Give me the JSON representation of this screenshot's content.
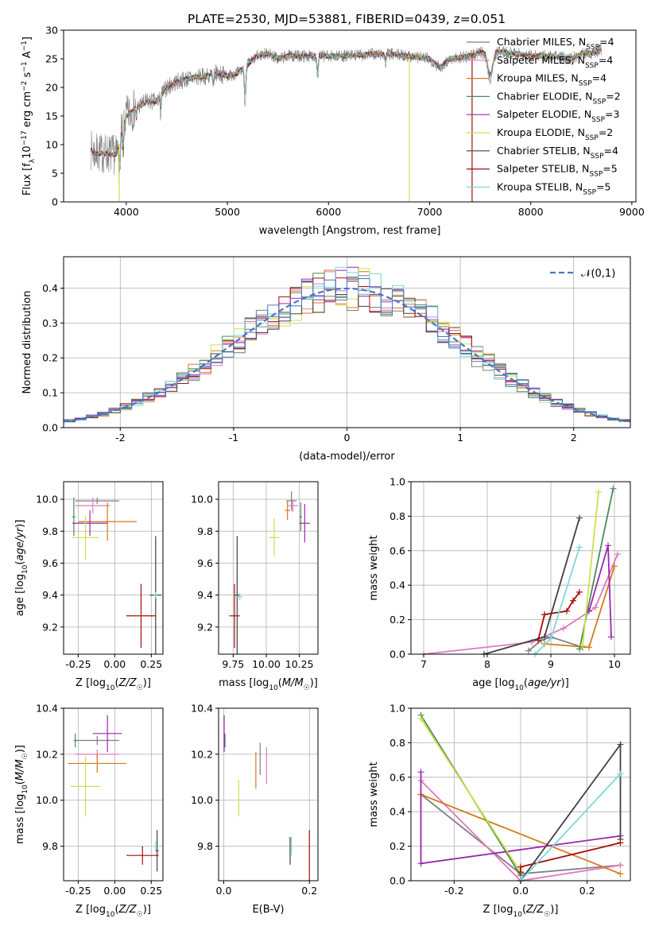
{
  "figure_title": "PLATE=2530, MJD=53881, FIBERID=0439, z=0.051",
  "colors": {
    "Chabrier MILES": "#7f7f7f",
    "Salpeter MILES": "#e377c2",
    "Kroupa MILES": "#d47a1a",
    "Chabrier ELODIE": "#4a8a5a",
    "Salpeter ELODIE": "#9b27b0",
    "Kroupa ELODIE": "#cde04a",
    "Chabrier STELIB": "#404040",
    "Salpeter STELIB": "#a50f0f",
    "Kroupa STELIB": "#7dd9dc",
    "model_blue": "#4a74c8",
    "normal_curve": "#4a74c8"
  },
  "chart_data": [
    {
      "id": "spectrum",
      "type": "line",
      "xlabel": "wavelength [Angstrom, rest frame]",
      "ylabel": "Flux [f_λ 10^-17 erg cm^-2 s^-1 A^-1]",
      "xlim": [
        3380,
        9040
      ],
      "ylim": [
        0,
        30
      ],
      "xticks": [
        4000,
        5000,
        6000,
        7000,
        8000,
        9000
      ],
      "yticks": [
        0,
        5,
        10,
        15,
        20,
        25,
        30
      ],
      "legend_position": "top-right",
      "continuum": {
        "x": [
          3650,
          3700,
          3800,
          3900,
          3950,
          4000,
          4100,
          4200,
          4300,
          4400,
          4500,
          4600,
          4800,
          4900,
          5000,
          5100,
          5200,
          5300,
          5400,
          5500,
          5600,
          5800,
          6000,
          6200,
          6400,
          6600,
          6800,
          7000,
          7100,
          7200,
          7400,
          7600,
          7800,
          8000,
          8200,
          8400,
          8500,
          8600,
          8700
        ],
        "y": [
          9.0,
          8.5,
          8.5,
          8.2,
          11.5,
          15.0,
          16.5,
          17.5,
          17.5,
          20.0,
          21.0,
          21.5,
          22.0,
          22.5,
          22.0,
          22.5,
          24.0,
          25.5,
          26.0,
          25.0,
          25.5,
          25.5,
          25.5,
          25.5,
          25.8,
          25.8,
          25.5,
          25.0,
          23.5,
          25.0,
          25.5,
          26.5,
          26.0,
          25.5,
          25.5,
          25.0,
          26.0,
          26.0,
          26.5
        ]
      },
      "series": [
        {
          "name": "Chabrier MILES",
          "subscript": "SSP",
          "n": "4"
        },
        {
          "name": "Salpeter MILES",
          "subscript": "SSP",
          "n": "4"
        },
        {
          "name": "Kroupa MILES",
          "subscript": "SSP",
          "n": "4"
        },
        {
          "name": "Chabrier ELODIE",
          "subscript": "SSP",
          "n": "2"
        },
        {
          "name": "Salpeter ELODIE",
          "subscript": "SSP",
          "n": "3"
        },
        {
          "name": "Kroupa ELODIE",
          "subscript": "SSP",
          "n": "2"
        },
        {
          "name": "Chabrier STELIB",
          "subscript": "SSP",
          "n": "4"
        },
        {
          "name": "Salpeter STELIB",
          "subscript": "SSP",
          "n": "5"
        },
        {
          "name": "Kroupa STELIB",
          "subscript": "SSP",
          "n": "5"
        }
      ],
      "drops": [
        {
          "series": "Kroupa ELODIE",
          "x": 3930
        },
        {
          "series": "Kroupa ELODIE",
          "x": 6800
        },
        {
          "series": "Salpeter STELIB",
          "x": 7420
        }
      ]
    },
    {
      "id": "residuals",
      "type": "histogram",
      "xlabel": "(data-model)/error",
      "ylabel": "Normed distribution",
      "xlim": [
        -2.5,
        2.5
      ],
      "ylim": [
        0,
        0.49
      ],
      "xticks": [
        -2,
        -1,
        0,
        1,
        2
      ],
      "yticks": [
        0,
        0.1,
        0.2,
        0.3,
        0.4
      ],
      "grid": true,
      "legend_position": "top-right",
      "legend_label": "𝒩(0,1)",
      "bin_width": 0.1
    },
    {
      "id": "age_vs_Z",
      "type": "errorbar",
      "xlabel": "Z [log10(Z/Z☉)]",
      "ylabel": "age  [log10(age/yr)]",
      "xlim": [
        -0.35,
        0.33
      ],
      "ylim": [
        9.03,
        10.11
      ],
      "xticks": [
        -0.25,
        0.0,
        0.25
      ],
      "yticks": [
        9.2,
        9.4,
        9.6,
        9.8,
        10.0
      ],
      "grid": true,
      "points": [
        {
          "series": "Chabrier MILES",
          "x": -0.12,
          "xerr": 0.15,
          "y": 9.99,
          "yerr": 0.02
        },
        {
          "series": "Salpeter MILES",
          "x": -0.15,
          "xerr": 0.12,
          "y": 9.96,
          "yerr": 0.05
        },
        {
          "series": "Kroupa MILES",
          "x": -0.05,
          "xerr": 0.2,
          "y": 9.86,
          "yerr": 0.12
        },
        {
          "series": "Chabrier ELODIE",
          "x": -0.28,
          "xerr": 0.01,
          "y": 9.89,
          "yerr": 0.12
        },
        {
          "series": "Salpeter ELODIE",
          "x": -0.17,
          "xerr": 0.12,
          "y": 9.85,
          "yerr": 0.08
        },
        {
          "series": "Kroupa ELODIE",
          "x": -0.2,
          "xerr": 0.09,
          "y": 9.76,
          "yerr": 0.14
        },
        {
          "series": "Chabrier STELIB",
          "x": 0.28,
          "xerr": 0.04,
          "y": 9.4,
          "yerr": 0.37
        },
        {
          "series": "Salpeter STELIB",
          "x": 0.18,
          "xerr": 0.1,
          "y": 9.27,
          "yerr": 0.2
        },
        {
          "series": "Kroupa STELIB",
          "x": 0.28,
          "xerr": 0.01,
          "y": 9.4,
          "yerr": 0.02
        }
      ]
    },
    {
      "id": "age_vs_mass",
      "type": "errorbar",
      "xlabel": "mass [log10(M/M☉)]",
      "ylabel": "",
      "xlim": [
        9.64,
        10.39
      ],
      "ylim": [
        9.03,
        10.11
      ],
      "xticks": [
        9.75,
        10.0,
        10.25
      ],
      "yticks": [
        9.2,
        9.4,
        9.6,
        9.8,
        10.0
      ],
      "grid": true,
      "points": [
        {
          "series": "Chabrier MILES",
          "x": 10.19,
          "xerr": 0.04,
          "y": 9.99,
          "yerr": 0.06
        },
        {
          "series": "Salpeter MILES",
          "x": 10.2,
          "xerr": 0.04,
          "y": 9.96,
          "yerr": 0.04
        },
        {
          "series": "Kroupa MILES",
          "x": 10.16,
          "xerr": 0.02,
          "y": 9.93,
          "yerr": 0.06
        },
        {
          "series": "Chabrier ELODIE",
          "x": 10.26,
          "xerr": 0.01,
          "y": 9.89,
          "yerr": 0.09
        },
        {
          "series": "Salpeter ELODIE",
          "x": 10.29,
          "xerr": 0.04,
          "y": 9.85,
          "yerr": 0.12
        },
        {
          "series": "Kroupa ELODIE",
          "x": 10.06,
          "xerr": 0.04,
          "y": 9.76,
          "yerr": 0.12
        },
        {
          "series": "Chabrier STELIB",
          "x": 9.78,
          "xerr": 0.02,
          "y": 9.4,
          "yerr": 0.37
        },
        {
          "series": "Salpeter STELIB",
          "x": 9.76,
          "xerr": 0.04,
          "y": 9.27,
          "yerr": 0.2
        },
        {
          "series": "Kroupa STELIB",
          "x": 9.8,
          "xerr": 0.02,
          "y": 9.39,
          "yerr": 0.02
        }
      ]
    },
    {
      "id": "massweight_vs_age",
      "type": "line",
      "xlabel": "age  [log10(age/yr)]",
      "ylabel": "mass weight",
      "xlim": [
        6.8,
        10.25
      ],
      "ylim": [
        0,
        1.0
      ],
      "xticks": [
        7,
        8,
        9,
        10
      ],
      "yticks": [
        0.0,
        0.2,
        0.4,
        0.6,
        0.8,
        1.0
      ],
      "grid": true,
      "series": [
        {
          "name": "Chabrier MILES",
          "x": [
            8.65,
            8.85,
            9.0,
            9.5
          ],
          "y": [
            0.02,
            0.08,
            0.1,
            0.04
          ]
        },
        {
          "name": "Salpeter MILES",
          "x": [
            7.0,
            8.7,
            9.2,
            9.7,
            10.05
          ],
          "y": [
            0.0,
            0.07,
            0.15,
            0.27,
            0.58
          ]
        },
        {
          "name": "Kroupa MILES",
          "x": [
            8.9,
            9.6,
            10.0
          ],
          "y": [
            0.06,
            0.04,
            0.51
          ]
        },
        {
          "name": "Chabrier ELODIE",
          "x": [
            9.45,
            9.98
          ],
          "y": [
            0.03,
            0.96
          ]
        },
        {
          "name": "Salpeter ELODIE",
          "x": [
            9.6,
            9.9,
            9.95
          ],
          "y": [
            0.25,
            0.63,
            0.1
          ]
        },
        {
          "name": "Kroupa ELODIE",
          "x": [
            9.5,
            9.75
          ],
          "y": [
            0.05,
            0.94
          ]
        },
        {
          "name": "Chabrier STELIB",
          "x": [
            7.95,
            8.9,
            9.45
          ],
          "y": [
            0.0,
            0.1,
            0.79
          ]
        },
        {
          "name": "Salpeter STELIB",
          "x": [
            8.8,
            8.9,
            9.25,
            9.35,
            9.45
          ],
          "y": [
            0.08,
            0.23,
            0.25,
            0.31,
            0.36
          ]
        },
        {
          "name": "Kroupa STELIB",
          "x": [
            8.75,
            9.0,
            9.45
          ],
          "y": [
            0.0,
            0.09,
            0.62
          ]
        }
      ]
    },
    {
      "id": "mass_vs_Z",
      "type": "errorbar",
      "xlabel": "Z [log10(Z/Z☉)]",
      "ylabel": "mass [log10(M/M☉)]",
      "xlim": [
        -0.35,
        0.33
      ],
      "ylim": [
        9.65,
        10.4
      ],
      "xticks": [
        -0.25,
        0.0,
        0.25
      ],
      "yticks": [
        9.8,
        10.0,
        10.2,
        10.4
      ],
      "grid": true,
      "points": [
        {
          "series": "Chabrier MILES",
          "x": -0.12,
          "xerr": 0.15,
          "y": 10.26,
          "yerr": 0.02
        },
        {
          "series": "Salpeter MILES",
          "x": -0.12,
          "xerr": 0.15,
          "y": 10.2,
          "yerr": 0.02
        },
        {
          "series": "Kroupa MILES",
          "x": -0.12,
          "xerr": 0.2,
          "y": 10.16,
          "yerr": 0.04
        },
        {
          "series": "Chabrier ELODIE",
          "x": -0.27,
          "xerr": 0.01,
          "y": 10.26,
          "yerr": 0.03
        },
        {
          "series": "Salpeter ELODIE",
          "x": -0.05,
          "xerr": 0.1,
          "y": 10.29,
          "yerr": 0.08
        },
        {
          "series": "Kroupa ELODIE",
          "x": -0.2,
          "xerr": 0.1,
          "y": 10.06,
          "yerr": 0.13
        },
        {
          "series": "Chabrier STELIB",
          "x": 0.29,
          "xerr": 0.01,
          "y": 9.78,
          "yerr": 0.09
        },
        {
          "series": "Salpeter STELIB",
          "x": 0.19,
          "xerr": 0.11,
          "y": 9.76,
          "yerr": 0.04
        },
        {
          "series": "Kroupa STELIB",
          "x": 0.28,
          "xerr": 0.01,
          "y": 9.8,
          "yerr": 0.02
        }
      ]
    },
    {
      "id": "mass_vs_EBV",
      "type": "errorbar",
      "xlabel": "E(B-V)",
      "ylabel": "",
      "xlim": [
        -0.012,
        0.22
      ],
      "ylim": [
        9.65,
        10.4
      ],
      "xticks": [
        0.0,
        0.2
      ],
      "yticks": [
        9.8,
        10.0,
        10.2,
        10.4
      ],
      "grid": true,
      "points": [
        {
          "series": "Chabrier MILES",
          "x": 0.085,
          "y": 10.18,
          "yerr": 0.07
        },
        {
          "series": "Salpeter MILES",
          "x": 0.1,
          "y": 10.15,
          "yerr": 0.08
        },
        {
          "series": "Kroupa MILES",
          "x": 0.075,
          "y": 10.13,
          "yerr": 0.08
        },
        {
          "series": "Chabrier ELODIE",
          "x": 0.003,
          "y": 10.26,
          "yerr": 0.03
        },
        {
          "series": "Salpeter ELODIE",
          "x": 0.001,
          "y": 10.29,
          "yerr": 0.08
        },
        {
          "series": "Kroupa ELODIE",
          "x": 0.035,
          "y": 10.01,
          "yerr": 0.08
        },
        {
          "series": "Chabrier STELIB",
          "x": 0.155,
          "y": 9.78,
          "yerr": 0.06
        },
        {
          "series": "Salpeter STELIB",
          "x": 0.2,
          "y": 9.76,
          "yerr": 0.11
        },
        {
          "series": "Kroupa STELIB",
          "x": 0.158,
          "y": 9.8,
          "yerr": 0.04
        }
      ]
    },
    {
      "id": "massweight_vs_Z",
      "type": "line",
      "xlabel": "Z [log10(Z/Z☉)]",
      "ylabel": "mass weight",
      "xlim": [
        -0.33,
        0.33
      ],
      "ylim": [
        0,
        1.0
      ],
      "xticks": [
        -0.2,
        0.0,
        0.2
      ],
      "yticks": [
        0.0,
        0.2,
        0.4,
        0.6,
        0.8,
        1.0
      ],
      "grid": true,
      "series": [
        {
          "name": "Chabrier MILES",
          "x": [
            -0.3,
            0.0,
            0.3
          ],
          "y": [
            0.5,
            0.04,
            0.09
          ]
        },
        {
          "name": "Salpeter MILES",
          "x": [
            -0.3,
            0.0,
            0.3
          ],
          "y": [
            0.58,
            0.0,
            0.09
          ]
        },
        {
          "name": "Kroupa MILES",
          "x": [
            -0.3,
            0.3
          ],
          "y": [
            0.5,
            0.04
          ]
        },
        {
          "name": "Chabrier ELODIE",
          "x": [
            -0.3,
            0.0
          ],
          "y": [
            0.96,
            0.03
          ]
        },
        {
          "name": "Salpeter ELODIE",
          "x": [
            -0.3,
            -0.3,
            0.3
          ],
          "y": [
            0.63,
            0.1,
            0.26
          ]
        },
        {
          "name": "Kroupa ELODIE",
          "x": [
            -0.3,
            0.0
          ],
          "y": [
            0.94,
            0.05
          ]
        },
        {
          "name": "Chabrier STELIB",
          "x": [
            0.0,
            0.3,
            0.3
          ],
          "y": [
            0.0,
            0.79,
            0.24
          ]
        },
        {
          "name": "Salpeter STELIB",
          "x": [
            0.0,
            0.0,
            0.3
          ],
          "y": [
            0.05,
            0.08,
            0.22
          ]
        },
        {
          "name": "Kroupa STELIB",
          "x": [
            0.0,
            0.3
          ],
          "y": [
            0.0,
            0.62
          ]
        }
      ]
    }
  ]
}
